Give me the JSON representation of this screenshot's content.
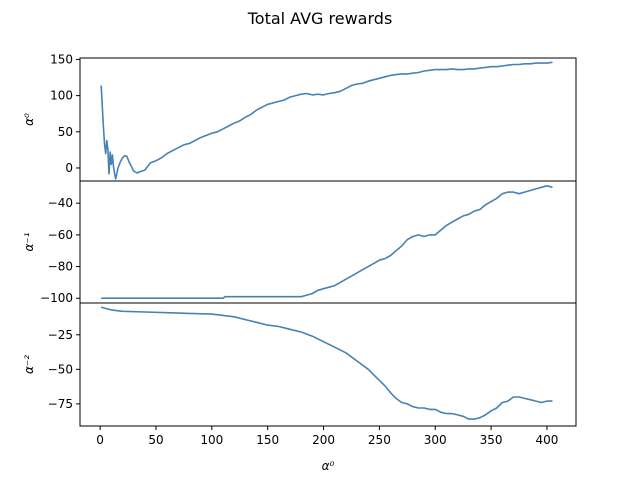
{
  "chart_data": {
    "type": "line",
    "title": "Total AVG rewards",
    "xlabel": "α⁰",
    "xlim": [
      -18,
      426
    ],
    "xticks": [
      0,
      50,
      100,
      150,
      200,
      250,
      300,
      350,
      400
    ],
    "series_color": "#4682b4",
    "subplots": [
      {
        "ylabel": "α⁰",
        "ylim": [
          -18,
          152
        ],
        "yticks": [
          0,
          50,
          100,
          150
        ],
        "points": [
          [
            1,
            114
          ],
          [
            2,
            85
          ],
          [
            3,
            55
          ],
          [
            4,
            32
          ],
          [
            5,
            20
          ],
          [
            6,
            38
          ],
          [
            7,
            25
          ],
          [
            8,
            -8
          ],
          [
            9,
            22
          ],
          [
            10,
            5
          ],
          [
            11,
            18
          ],
          [
            12,
            2
          ],
          [
            13,
            -8
          ],
          [
            14,
            -15
          ],
          [
            16,
            0
          ],
          [
            18,
            8
          ],
          [
            20,
            14
          ],
          [
            22,
            17
          ],
          [
            24,
            16
          ],
          [
            26,
            8
          ],
          [
            28,
            2
          ],
          [
            30,
            -4
          ],
          [
            33,
            -7
          ],
          [
            36,
            -5
          ],
          [
            40,
            -3
          ],
          [
            45,
            7
          ],
          [
            50,
            10
          ],
          [
            55,
            14
          ],
          [
            60,
            20
          ],
          [
            65,
            24
          ],
          [
            70,
            28
          ],
          [
            75,
            32
          ],
          [
            80,
            34
          ],
          [
            85,
            38
          ],
          [
            90,
            42
          ],
          [
            95,
            45
          ],
          [
            100,
            48
          ],
          [
            105,
            50
          ],
          [
            110,
            54
          ],
          [
            115,
            58
          ],
          [
            120,
            62
          ],
          [
            125,
            65
          ],
          [
            130,
            70
          ],
          [
            135,
            74
          ],
          [
            140,
            80
          ],
          [
            145,
            84
          ],
          [
            150,
            88
          ],
          [
            155,
            90
          ],
          [
            160,
            92
          ],
          [
            165,
            94
          ],
          [
            170,
            98
          ],
          [
            175,
            100
          ],
          [
            180,
            102
          ],
          [
            185,
            103
          ],
          [
            190,
            101
          ],
          [
            195,
            102
          ],
          [
            200,
            101
          ],
          [
            205,
            103
          ],
          [
            210,
            104
          ],
          [
            215,
            106
          ],
          [
            220,
            110
          ],
          [
            225,
            114
          ],
          [
            230,
            116
          ],
          [
            235,
            117
          ],
          [
            240,
            120
          ],
          [
            245,
            122
          ],
          [
            250,
            124
          ],
          [
            255,
            126
          ],
          [
            260,
            128
          ],
          [
            265,
            129
          ],
          [
            270,
            130
          ],
          [
            275,
            130
          ],
          [
            280,
            131
          ],
          [
            285,
            132
          ],
          [
            290,
            134
          ],
          [
            295,
            135
          ],
          [
            300,
            136
          ],
          [
            305,
            136
          ],
          [
            310,
            136
          ],
          [
            315,
            137
          ],
          [
            320,
            136
          ],
          [
            325,
            136
          ],
          [
            330,
            137
          ],
          [
            335,
            137
          ],
          [
            340,
            138
          ],
          [
            345,
            139
          ],
          [
            350,
            140
          ],
          [
            355,
            140
          ],
          [
            360,
            141
          ],
          [
            365,
            142
          ],
          [
            370,
            143
          ],
          [
            375,
            143
          ],
          [
            380,
            144
          ],
          [
            385,
            144
          ],
          [
            390,
            145
          ],
          [
            395,
            145
          ],
          [
            400,
            145
          ],
          [
            405,
            146
          ]
        ]
      },
      {
        "ylabel": "α⁻¹",
        "ylim": [
          -103,
          -26
        ],
        "yticks": [
          -100,
          -80,
          -60,
          -40
        ],
        "points": [
          [
            1,
            -100
          ],
          [
            50,
            -100
          ],
          [
            100,
            -100
          ],
          [
            110,
            -100
          ],
          [
            112,
            -99
          ],
          [
            150,
            -99
          ],
          [
            180,
            -99
          ],
          [
            185,
            -98
          ],
          [
            190,
            -97
          ],
          [
            195,
            -95
          ],
          [
            200,
            -94
          ],
          [
            205,
            -93
          ],
          [
            210,
            -92
          ],
          [
            215,
            -90
          ],
          [
            220,
            -88
          ],
          [
            225,
            -86
          ],
          [
            230,
            -84
          ],
          [
            235,
            -82
          ],
          [
            240,
            -80
          ],
          [
            245,
            -78
          ],
          [
            250,
            -76
          ],
          [
            255,
            -75
          ],
          [
            260,
            -73
          ],
          [
            265,
            -70
          ],
          [
            270,
            -67
          ],
          [
            275,
            -63
          ],
          [
            280,
            -61
          ],
          [
            285,
            -60
          ],
          [
            290,
            -61
          ],
          [
            295,
            -60
          ],
          [
            300,
            -60
          ],
          [
            305,
            -57
          ],
          [
            310,
            -54
          ],
          [
            315,
            -52
          ],
          [
            320,
            -50
          ],
          [
            325,
            -48
          ],
          [
            330,
            -47
          ],
          [
            335,
            -45
          ],
          [
            340,
            -44
          ],
          [
            345,
            -41
          ],
          [
            350,
            -39
          ],
          [
            355,
            -37
          ],
          [
            360,
            -34
          ],
          [
            365,
            -33
          ],
          [
            370,
            -33
          ],
          [
            375,
            -34
          ],
          [
            380,
            -33
          ],
          [
            385,
            -32
          ],
          [
            390,
            -31
          ],
          [
            395,
            -30
          ],
          [
            400,
            -29
          ],
          [
            405,
            -30
          ]
        ]
      },
      {
        "ylabel": "α⁻²",
        "ylim": [
          -91,
          -2
        ],
        "yticks": [
          -25,
          -50,
          -75
        ],
        "points": [
          [
            1,
            -5
          ],
          [
            5,
            -6
          ],
          [
            10,
            -7
          ],
          [
            20,
            -8
          ],
          [
            40,
            -8.5
          ],
          [
            60,
            -9
          ],
          [
            80,
            -9.5
          ],
          [
            100,
            -10
          ],
          [
            110,
            -11
          ],
          [
            120,
            -12
          ],
          [
            130,
            -14
          ],
          [
            140,
            -16
          ],
          [
            150,
            -18
          ],
          [
            160,
            -19
          ],
          [
            170,
            -21
          ],
          [
            180,
            -23
          ],
          [
            190,
            -26
          ],
          [
            200,
            -30
          ],
          [
            210,
            -34
          ],
          [
            220,
            -38
          ],
          [
            230,
            -44
          ],
          [
            240,
            -50
          ],
          [
            250,
            -58
          ],
          [
            255,
            -62
          ],
          [
            260,
            -67
          ],
          [
            265,
            -71
          ],
          [
            270,
            -74
          ],
          [
            275,
            -75
          ],
          [
            280,
            -77
          ],
          [
            285,
            -78
          ],
          [
            290,
            -78
          ],
          [
            295,
            -79
          ],
          [
            300,
            -79
          ],
          [
            305,
            -81
          ],
          [
            310,
            -82
          ],
          [
            315,
            -82
          ],
          [
            320,
            -83
          ],
          [
            325,
            -84
          ],
          [
            330,
            -86
          ],
          [
            335,
            -86
          ],
          [
            340,
            -85
          ],
          [
            345,
            -83
          ],
          [
            350,
            -80
          ],
          [
            355,
            -78
          ],
          [
            360,
            -74
          ],
          [
            365,
            -73
          ],
          [
            370,
            -70
          ],
          [
            375,
            -70
          ],
          [
            380,
            -71
          ],
          [
            385,
            -72
          ],
          [
            390,
            -73
          ],
          [
            395,
            -74
          ],
          [
            400,
            -73
          ],
          [
            405,
            -73
          ]
        ]
      }
    ]
  }
}
